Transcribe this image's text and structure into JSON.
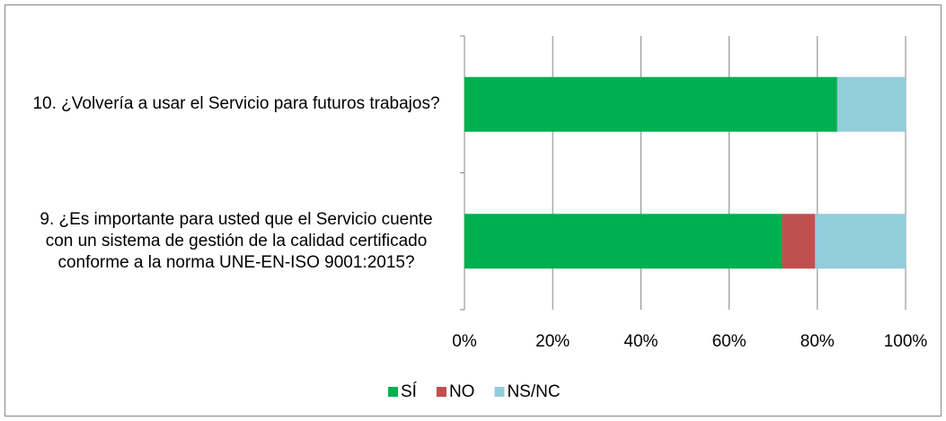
{
  "chart_data": {
    "type": "stacked_barh",
    "categories": [
      "10. ¿Volvería a usar el Servicio para futuros trabajos?",
      "9. ¿Es importante para usted que el Servicio cuente con un sistema de gestión de la calidad certificado conforme a la norma UNE-EN-ISO 9001:2015?"
    ],
    "series": [
      {
        "name": "SÍ",
        "color": "#00b050",
        "values": [
          84.5,
          72
        ]
      },
      {
        "name": "NO",
        "color": "#c0504d",
        "values": [
          0,
          7.5
        ]
      },
      {
        "name": "NS/NC",
        "color": "#92cddc",
        "values": [
          15.5,
          20.5
        ]
      }
    ],
    "xlim": [
      0,
      100
    ],
    "xticks": [
      {
        "value": 0,
        "label": "0%"
      },
      {
        "value": 20,
        "label": "20%"
      },
      {
        "value": 40,
        "label": "40%"
      },
      {
        "value": 60,
        "label": "60%"
      },
      {
        "value": 80,
        "label": "80%"
      },
      {
        "value": 100,
        "label": "100%"
      }
    ],
    "grid": true,
    "legend": "bottom"
  }
}
